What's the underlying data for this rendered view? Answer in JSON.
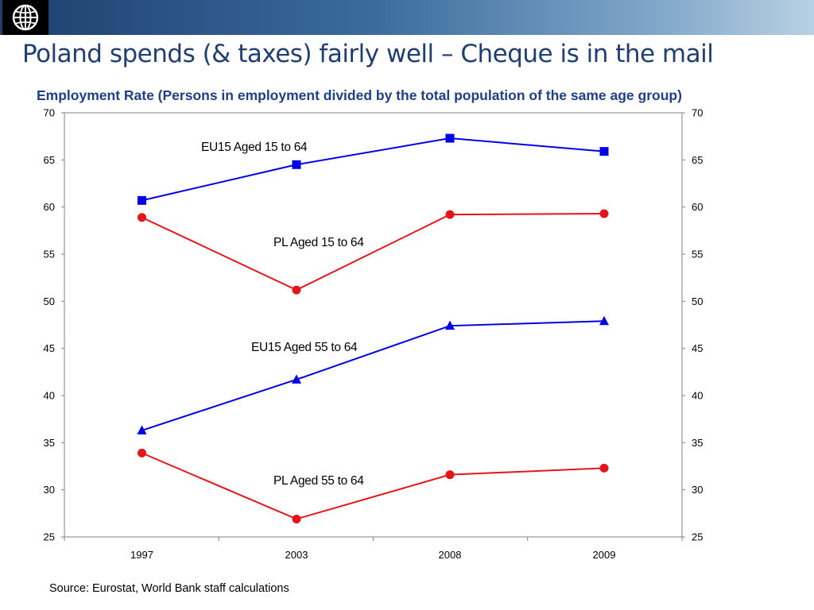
{
  "slide": {
    "title": "Poland spends (& taxes) fairly well – Cheque is in the mail",
    "source": "Source: Eurostat, World Bank staff calculations",
    "logo_icon": "world-bank-globe-icon"
  },
  "colors": {
    "header_dark": "#1d3f6e",
    "title": "#1f3f73",
    "eu15": "#0000e6",
    "pl": "#e8141b"
  },
  "chart_data": {
    "type": "line",
    "title": "Employment Rate (Persons in employment divided by the total population of the same age group)",
    "categories": [
      "1997",
      "2003",
      "2008",
      "2009"
    ],
    "ylim": [
      25,
      70
    ],
    "yticks": [
      25,
      30,
      35,
      40,
      45,
      50,
      55,
      60,
      65,
      70
    ],
    "y_axis_sides": "left-and-right",
    "grid": false,
    "series": [
      {
        "name": "EU15 Aged 15 to 64",
        "values": [
          60.7,
          64.5,
          67.3,
          65.9
        ],
        "color": "#0000e6",
        "marker": "square"
      },
      {
        "name": "PL Aged 15 to 64",
        "values": [
          58.9,
          51.2,
          59.2,
          59.3
        ],
        "color": "#e8141b",
        "marker": "circle"
      },
      {
        "name": "EU15 Aged 55 to 64",
        "values": [
          36.3,
          41.7,
          47.4,
          47.9
        ],
        "color": "#0000e6",
        "marker": "triangle"
      },
      {
        "name": "PL Aged 55 to 64",
        "values": [
          33.9,
          26.9,
          31.6,
          32.3
        ],
        "color": "#e8141b",
        "marker": "circle"
      }
    ]
  }
}
